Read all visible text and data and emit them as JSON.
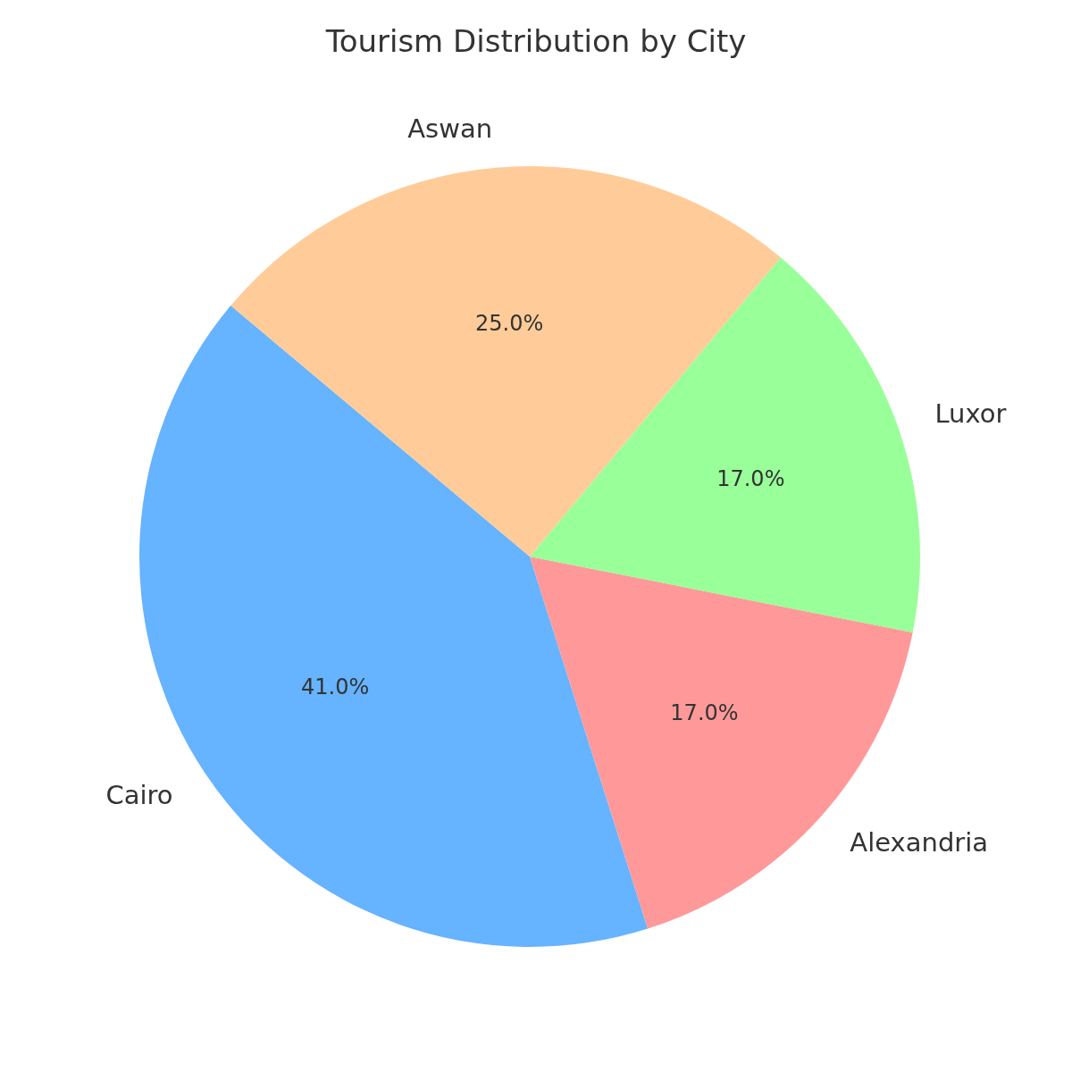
{
  "chart_data": {
    "type": "pie",
    "title": "Tourism Distribution by City",
    "categories": [
      "Cairo",
      "Alexandria",
      "Luxor",
      "Aswan"
    ],
    "values": [
      41,
      17,
      17,
      25
    ],
    "colors": [
      "#66b3ff",
      "#ff9999",
      "#99ff99",
      "#ffcc99"
    ],
    "value_labels": [
      "41.0%",
      "17.0%",
      "17.0%",
      "25.0%"
    ]
  }
}
